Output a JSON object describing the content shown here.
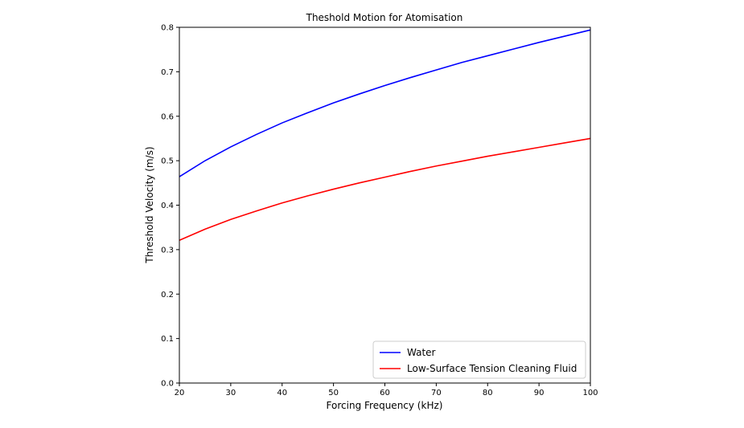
{
  "chart_data": {
    "type": "line",
    "title": "Theshold Motion for Atomisation",
    "xlabel": "Forcing Frequency (kHz)",
    "ylabel": "Threshold Velocity (m/s)",
    "xlim": [
      20,
      100
    ],
    "ylim": [
      0.0,
      0.8
    ],
    "xticks": [
      20,
      30,
      40,
      50,
      60,
      70,
      80,
      90,
      100
    ],
    "xtick_labels": [
      "20",
      "30",
      "40",
      "50",
      "60",
      "70",
      "80",
      "90",
      "100"
    ],
    "yticks": [
      0.0,
      0.1,
      0.2,
      0.3,
      0.4,
      0.5,
      0.6,
      0.7,
      0.8
    ],
    "ytick_labels": [
      "0.0",
      "0.1",
      "0.2",
      "0.3",
      "0.4",
      "0.5",
      "0.6",
      "0.7",
      "0.8"
    ],
    "grid": false,
    "legend_position": "bottom-right",
    "x": [
      20,
      25,
      30,
      35,
      40,
      45,
      50,
      55,
      60,
      65,
      70,
      75,
      80,
      85,
      90,
      95,
      100
    ],
    "series": [
      {
        "name": "Water",
        "color": "#0000ff",
        "values": [
          0.464,
          0.5,
          0.531,
          0.559,
          0.585,
          0.608,
          0.63,
          0.65,
          0.669,
          0.687,
          0.704,
          0.721,
          0.736,
          0.751,
          0.766,
          0.78,
          0.794
        ]
      },
      {
        "name": "Low-Surface Tension Cleaning Fluid",
        "color": "#ff0000",
        "values": [
          0.321,
          0.346,
          0.368,
          0.387,
          0.405,
          0.421,
          0.436,
          0.45,
          0.463,
          0.476,
          0.488,
          0.499,
          0.51,
          0.52,
          0.53,
          0.54,
          0.55
        ]
      }
    ]
  }
}
